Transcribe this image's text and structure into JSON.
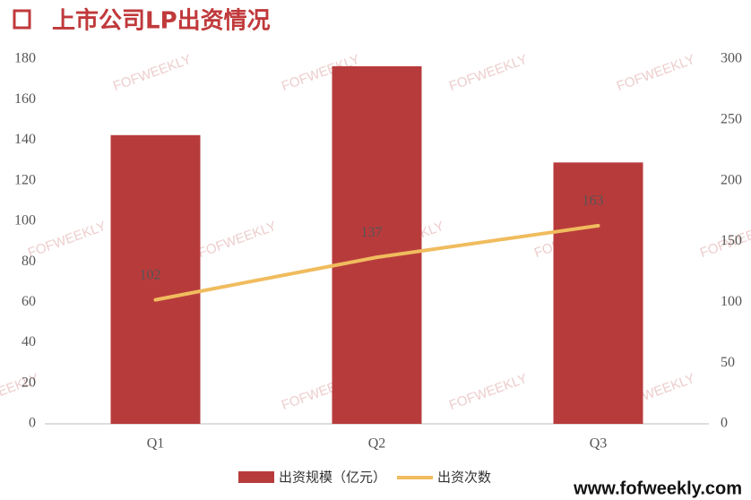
{
  "chart_data": {
    "type": "bar-line",
    "title": "上市公司LP出资情况",
    "categories": [
      "Q1",
      "Q2",
      "Q3"
    ],
    "series": [
      {
        "name": "出资规模（亿元）",
        "type": "bar",
        "color": "#b83b3c",
        "values": [
          142.5,
          176.5,
          129
        ]
      },
      {
        "name": "出资次数",
        "type": "line",
        "axis": "y2",
        "color": "#f0bc5e",
        "values": [
          102,
          137,
          163
        ]
      }
    ],
    "ylim": [
      0,
      180
    ],
    "yticks": [
      0,
      20,
      40,
      60,
      80,
      100,
      120,
      140,
      160,
      180
    ],
    "y2lim": [
      0,
      300
    ],
    "y2ticks": [
      0,
      50,
      100,
      150,
      200,
      250,
      300
    ],
    "grid": false,
    "legend": "bottom",
    "watermark": "FOFWEEKLY",
    "footer": "www.fofweekly.com"
  }
}
